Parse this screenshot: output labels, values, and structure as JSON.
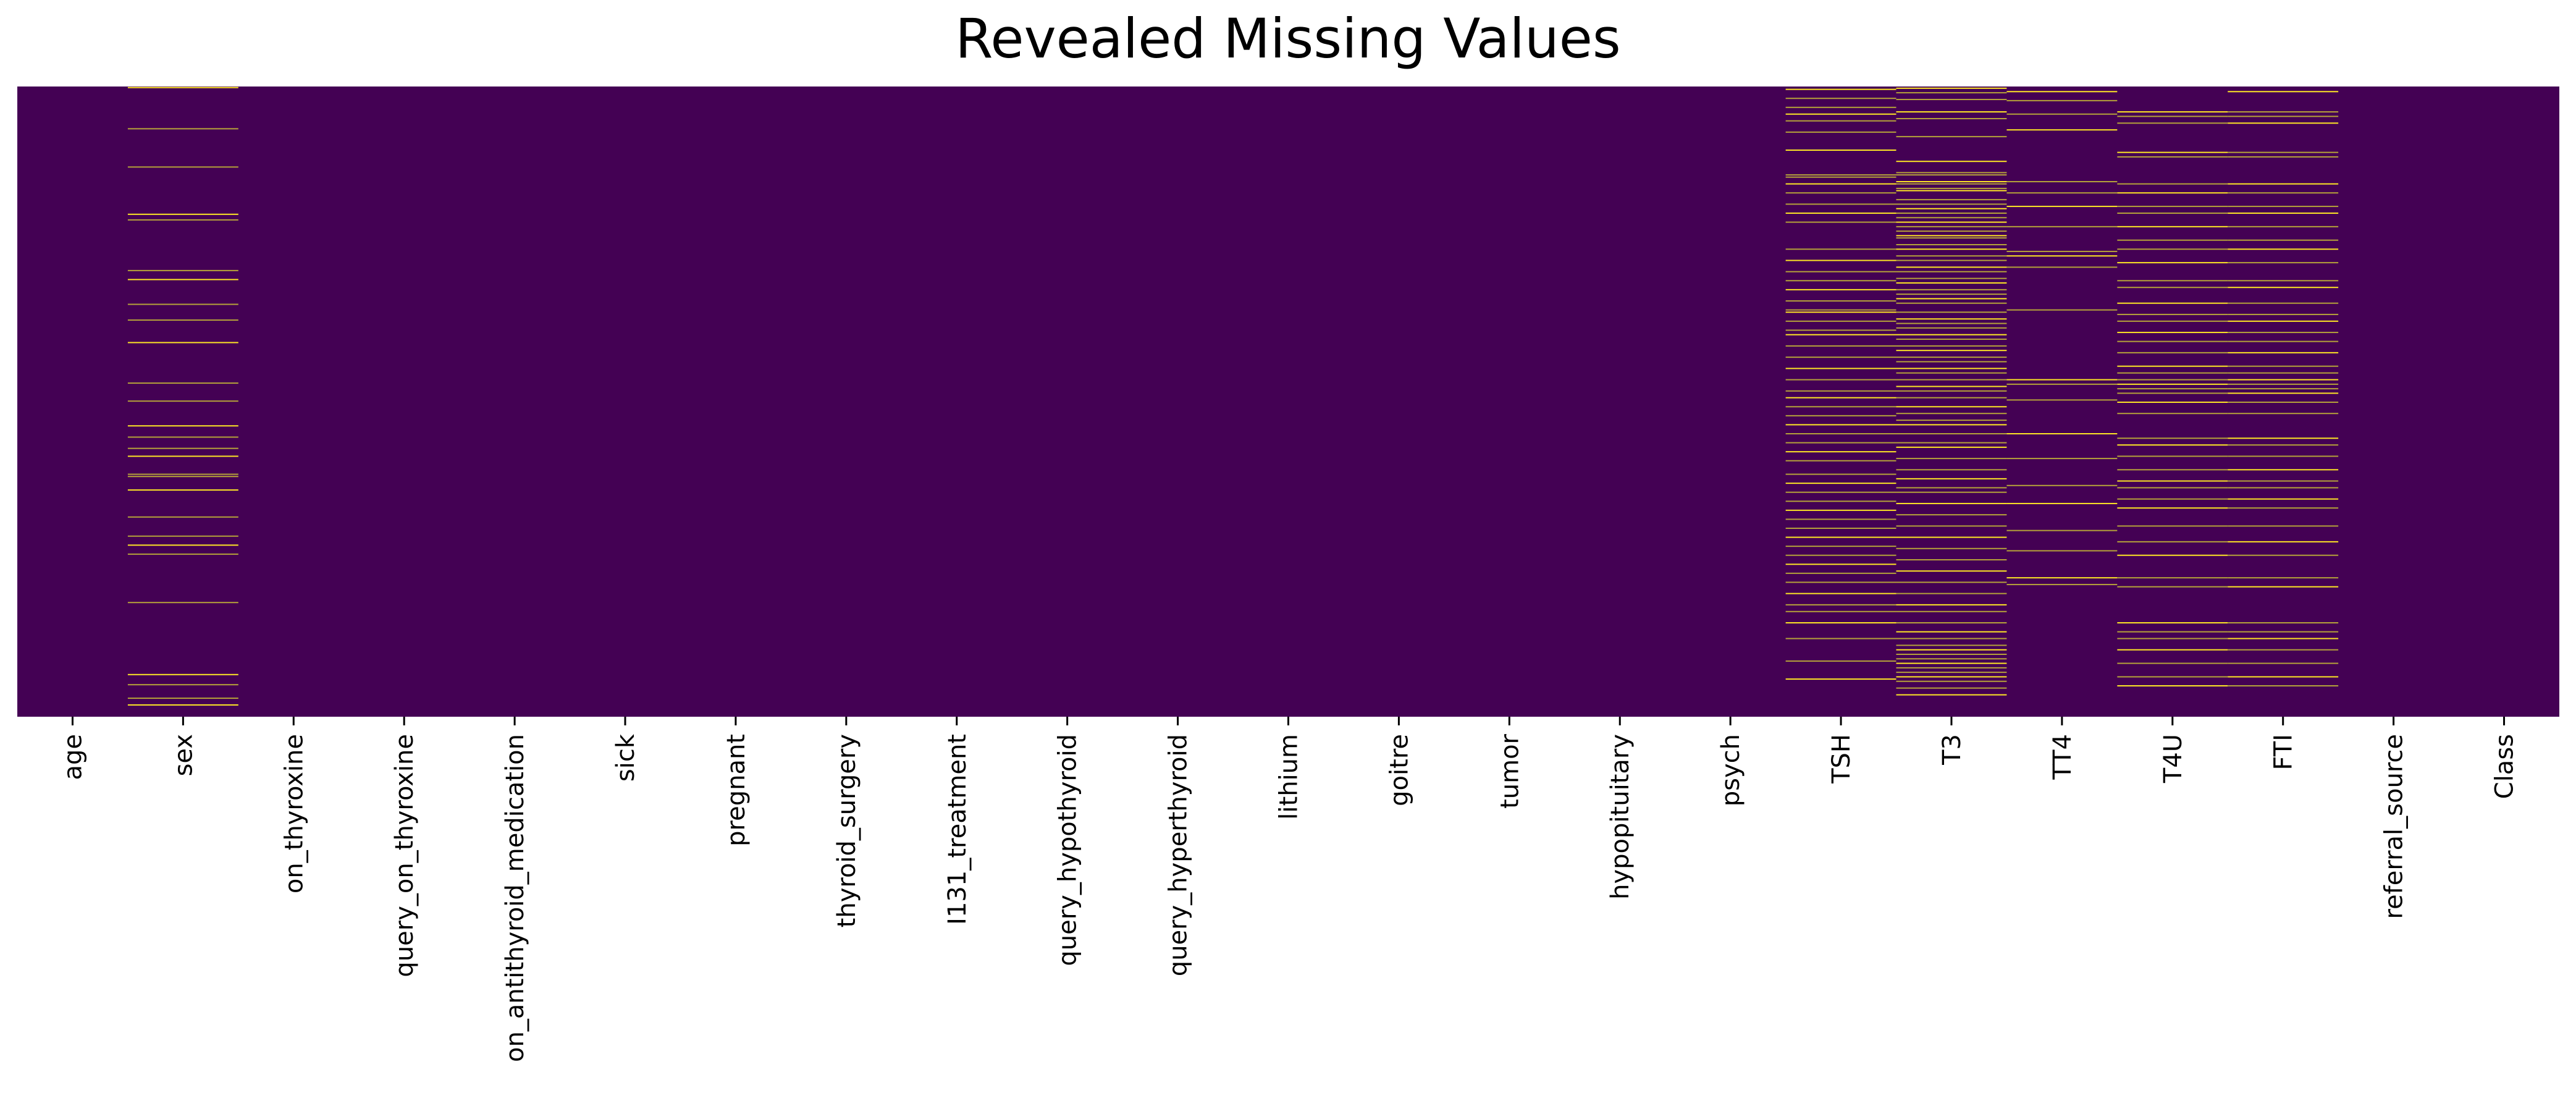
{
  "chart_data": {
    "type": "heatmap",
    "title": "Revealed Missing Values",
    "xlabel": "",
    "ylabel": "",
    "columns": [
      "age",
      "sex",
      "on_thyroxine",
      "query_on_thyroxine",
      "on_antithyroid_medication",
      "sick",
      "pregnant",
      "thyroid_surgery",
      "I131_treatment",
      "query_hypothyroid",
      "query_hyperthyroid",
      "lithium",
      "goitre",
      "tumor",
      "hypopituitary",
      "psych",
      "TSH",
      "T3",
      "TT4",
      "T4U",
      "FTI",
      "referral_source",
      "Class"
    ],
    "rows": 2800,
    "yticks": "hidden",
    "colorbar": "none",
    "colors": {
      "present": "#440154",
      "missing": "#fde725",
      "missing_faint": "#b5a23a"
    },
    "missing_rows": {
      "age": [],
      "sex": [
        2,
        185,
        355,
        565,
        590,
        815,
        855,
        965,
        1035,
        1135,
        1315,
        1395,
        1505,
        1555,
        1605,
        1640,
        1720,
        1730,
        1790,
        1910,
        1995,
        2035,
        2075,
        2290,
        2610,
        2655,
        2715,
        2745
      ],
      "on_thyroxine": [],
      "query_on_thyroxine": [],
      "on_antithyroid_medication": [],
      "sick": [],
      "pregnant": [],
      "thyroid_surgery": [],
      "I131_treatment": [],
      "query_hypothyroid": [],
      "query_hyperthyroid": [],
      "lithium": [],
      "goitre": [],
      "tumor": [],
      "hypopituitary": [],
      "psych": [],
      "TSH": [
        10,
        50,
        90,
        120,
        150,
        200,
        280,
        390,
        400,
        430,
        470,
        520,
        560,
        600,
        720,
        770,
        820,
        860,
        900,
        950,
        990,
        1000,
        1040,
        1080,
        1100,
        1150,
        1200,
        1250,
        1300,
        1350,
        1380,
        1420,
        1460,
        1500,
        1540,
        1580,
        1620,
        1660,
        1720,
        1760,
        1800,
        1840,
        1880,
        1920,
        1960,
        2000,
        2040,
        2080,
        2120,
        2160,
        2200,
        2250,
        2300,
        2330,
        2380,
        2450,
        2550,
        2630
      ],
      "T3": [
        5,
        25,
        55,
        110,
        140,
        220,
        330,
        380,
        390,
        420,
        430,
        450,
        460,
        500,
        520,
        540,
        560,
        580,
        600,
        620,
        640,
        660,
        670,
        700,
        720,
        750,
        770,
        800,
        820,
        850,
        870,
        900,
        920,
        940,
        960,
        1000,
        1030,
        1050,
        1070,
        1100,
        1120,
        1150,
        1170,
        1200,
        1220,
        1250,
        1270,
        1300,
        1330,
        1350,
        1380,
        1420,
        1450,
        1480,
        1500,
        1540,
        1580,
        1600,
        1650,
        1700,
        1740,
        1780,
        1800,
        1850,
        1900,
        1950,
        2000,
        2050,
        2100,
        2150,
        2200,
        2250,
        2300,
        2330,
        2380,
        2420,
        2450,
        2480,
        2500,
        2520,
        2540,
        2560,
        2580,
        2600,
        2620,
        2640,
        2670,
        2700
      ],
      "TT4": [
        20,
        60,
        120,
        190,
        420,
        470,
        530,
        620,
        730,
        750,
        800,
        990,
        1300,
        1320,
        1390,
        1540,
        1650,
        1770,
        1850,
        1970,
        2060,
        2180,
        2210
      ],
      "T4U": [
        110,
        130,
        160,
        290,
        310,
        430,
        470,
        530,
        560,
        620,
        680,
        720,
        780,
        860,
        890,
        960,
        1010,
        1040,
        1090,
        1130,
        1180,
        1240,
        1270,
        1300,
        1320,
        1340,
        1360,
        1400,
        1450,
        1560,
        1590,
        1640,
        1700,
        1750,
        1780,
        1830,
        1870,
        1950,
        2020,
        2080,
        2180,
        2220,
        2380,
        2420,
        2450,
        2500,
        2560,
        2620,
        2660
      ],
      "FTI": [
        20,
        110,
        130,
        160,
        290,
        310,
        430,
        470,
        530,
        560,
        620,
        680,
        720,
        780,
        860,
        890,
        960,
        1010,
        1040,
        1090,
        1130,
        1180,
        1240,
        1270,
        1300,
        1320,
        1340,
        1360,
        1400,
        1450,
        1560,
        1590,
        1640,
        1700,
        1750,
        1780,
        1830,
        1870,
        1950,
        2020,
        2080,
        2180,
        2220,
        2380,
        2420,
        2450,
        2500,
        2560,
        2620,
        2660
      ],
      "referral_source": [],
      "Class": []
    }
  }
}
